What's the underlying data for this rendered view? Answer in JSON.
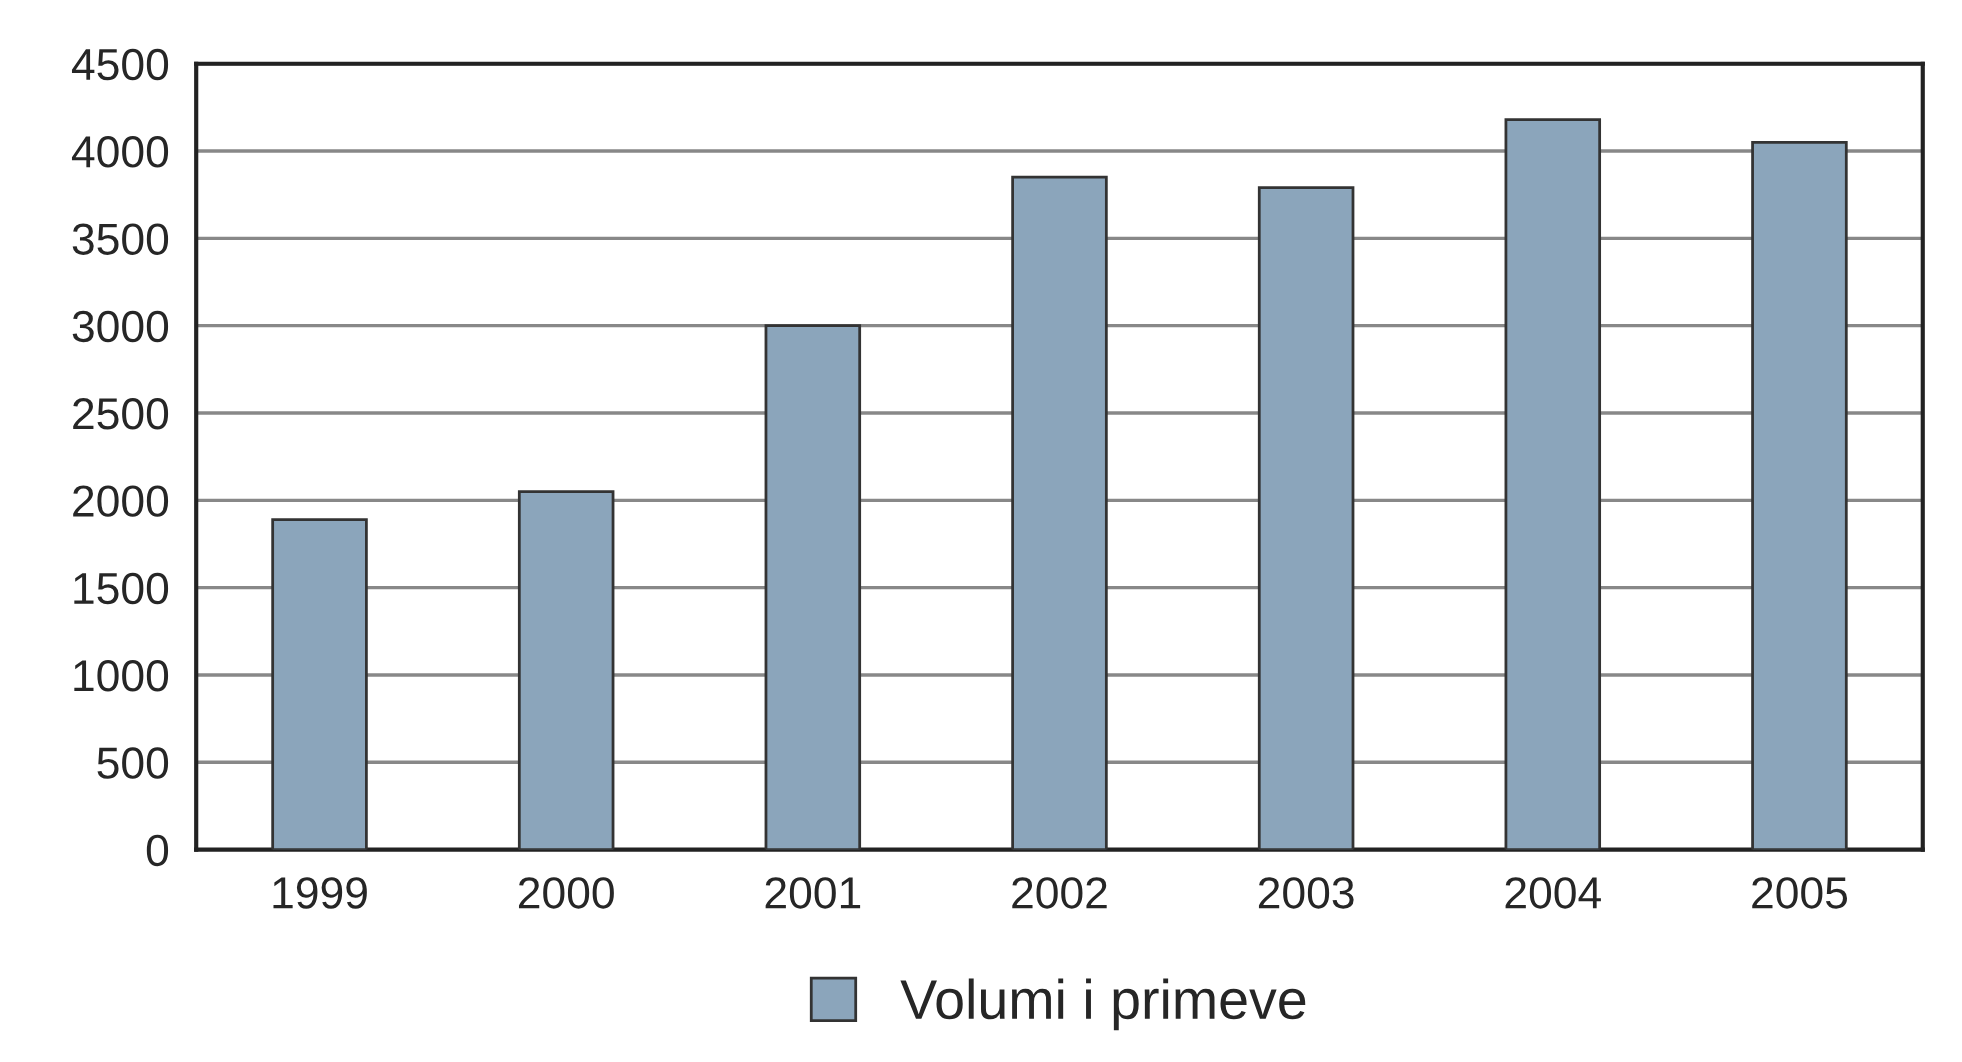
{
  "chart_data": {
    "type": "bar",
    "categories": [
      "1999",
      "2000",
      "2001",
      "2002",
      "2003",
      "2004",
      "2005"
    ],
    "series": [
      {
        "name": "Volumi i primeve",
        "color": "#8ba5bb",
        "values": [
          1890,
          2050,
          3000,
          3850,
          3790,
          4180,
          4050
        ]
      }
    ],
    "ylim": [
      0,
      4500
    ],
    "yticks": [
      0,
      500,
      1000,
      1500,
      2000,
      2500,
      3000,
      3500,
      4000,
      4500
    ],
    "grid": "y",
    "legend": "bottom"
  }
}
